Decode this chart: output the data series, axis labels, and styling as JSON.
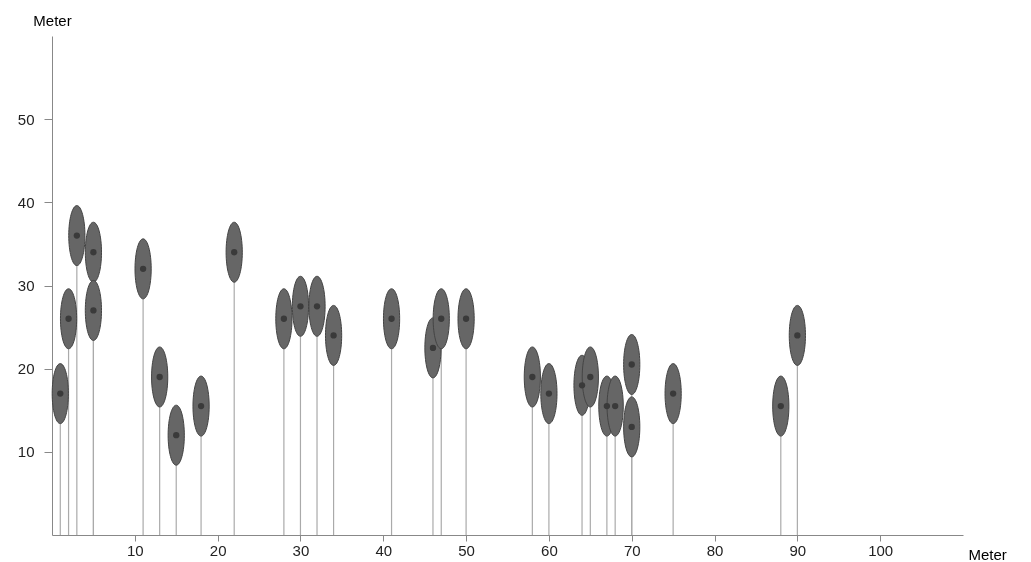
{
  "chart_data": {
    "type": "lollipop",
    "xlabel": "Meter",
    "ylabel": "Meter",
    "x": [
      1,
      2,
      3,
      5,
      5,
      11,
      13,
      15,
      18,
      22,
      28,
      30,
      32,
      34,
      41,
      46,
      47,
      50,
      58,
      60,
      64,
      65,
      67,
      68,
      70,
      70,
      75,
      88,
      90
    ],
    "values": [
      17,
      26,
      36,
      34,
      27,
      32,
      19,
      12,
      15.5,
      34,
      26,
      27.5,
      27.5,
      24,
      26,
      22.5,
      26,
      26,
      19,
      17,
      18,
      19,
      15.5,
      15.5,
      20.5,
      13,
      17,
      15.5,
      24
    ],
    "color": "#3a3a3a",
    "xlim": [
      0,
      110
    ],
    "xticks": [
      10,
      20,
      30,
      40,
      50,
      60,
      70,
      80,
      90,
      100
    ],
    "ylim": [
      0,
      60
    ],
    "yticks": [
      10,
      20,
      30,
      40,
      50
    ],
    "grid": false
  }
}
